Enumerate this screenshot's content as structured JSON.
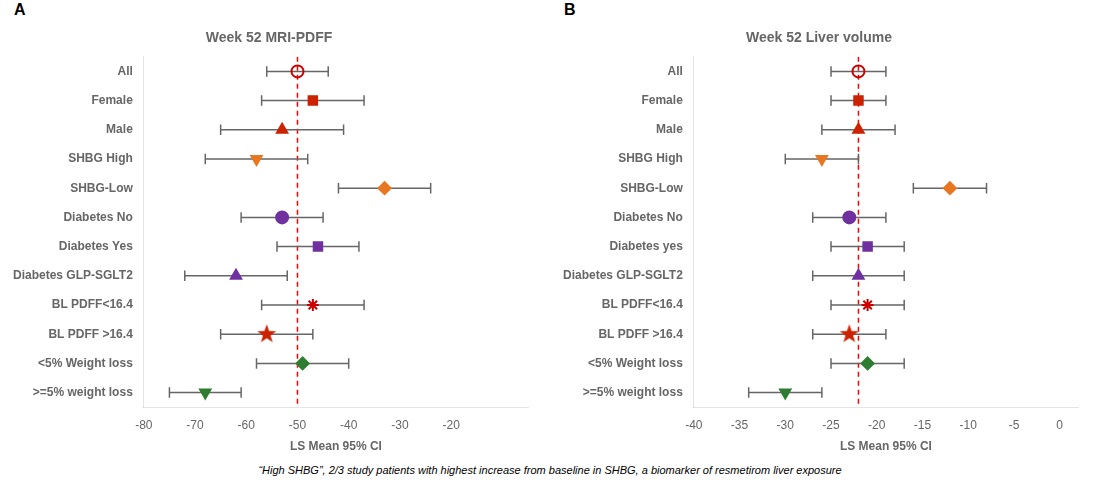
{
  "chart_data": [
    {
      "type": "forest",
      "title": "Week 52 MRI-PDFF",
      "label": "A",
      "xlabel": "LS Mean 95% CI",
      "categories": [
        "All",
        "Female",
        "Male",
        "SHBG High",
        "SHBG-Low",
        "Diabetes No",
        "Diabetes Yes",
        "Diabetes GLP-SGLT2",
        "BL PDFF<16.4",
        "BL PDFF >16.4",
        "<5% Weight loss",
        ">=5% weight loss"
      ],
      "values": [
        -50,
        -47,
        -53,
        -58,
        -33,
        -53,
        -46,
        -62,
        -47,
        -56,
        -49,
        -68
      ],
      "ci_low": [
        -56,
        -57,
        -65,
        -68,
        -42,
        -61,
        -54,
        -72,
        -57,
        -65,
        -58,
        -75
      ],
      "ci_high": [
        -44,
        -37,
        -41,
        -48,
        -24,
        -45,
        -38,
        -52,
        -37,
        -47,
        -40,
        -61
      ],
      "markers": [
        "circle-open",
        "square",
        "triangle",
        "triangle-down",
        "diamond",
        "circle",
        "square",
        "triangle",
        "asterisk",
        "star",
        "diamond",
        "triangle-down"
      ],
      "colors": [
        "#cc0000",
        "#cc2200",
        "#cc2200",
        "#e87722",
        "#e87722",
        "#7030a0",
        "#7030a0",
        "#7030a0",
        "#cc0000",
        "#cc2200",
        "#2e7d32",
        "#2e7d32"
      ],
      "xlim": [
        -80,
        -5
      ],
      "xticks": [
        -80,
        -70,
        -60,
        -50,
        -40,
        -30,
        -20
      ],
      "reference_line": {
        "value": -50,
        "color": "red",
        "line_style": "dashed"
      },
      "grid": false
    },
    {
      "type": "forest",
      "title": "Week 52 Liver volume",
      "label": "B",
      "xlabel": "LS Mean 95% CI",
      "categories": [
        "All",
        "Female",
        "Male",
        "SHBG High",
        "SHBG-Low",
        "Diabetes No",
        "Diabetes yes",
        "Diabetes GLP-SGLT2",
        "BL PDFF<16.4",
        "BL PDFF >16.4",
        "<5% Weight loss",
        ">=5% weight loss"
      ],
      "values": [
        -22,
        -22,
        -22,
        -26,
        -12,
        -23,
        -21,
        -22,
        -21,
        -23,
        -21,
        -30
      ],
      "ci_low": [
        -25,
        -25,
        -26,
        -30,
        -16,
        -27,
        -25,
        -27,
        -25,
        -27,
        -25,
        -34
      ],
      "ci_high": [
        -19,
        -19,
        -18,
        -22,
        -8,
        -19,
        -17,
        -17,
        -17,
        -19,
        -17,
        -26
      ],
      "markers": [
        "circle-open",
        "square",
        "triangle",
        "triangle-down",
        "diamond",
        "circle",
        "square",
        "triangle",
        "asterisk",
        "star",
        "diamond",
        "triangle-down"
      ],
      "colors": [
        "#cc0000",
        "#cc2200",
        "#cc2200",
        "#e87722",
        "#e87722",
        "#7030a0",
        "#7030a0",
        "#7030a0",
        "#cc0000",
        "#cc2200",
        "#2e7d32",
        "#2e7d32"
      ],
      "xlim": [
        -40,
        2
      ],
      "xticks": [
        -40,
        -35,
        -30,
        -25,
        -20,
        -15,
        -10,
        -5,
        0
      ],
      "reference_line": {
        "value": -22,
        "color": "red",
        "line_style": "dashed"
      },
      "grid": false
    }
  ],
  "footnote": "“High SHBG”, 2/3 study patients with highest increase from baseline in SHBG, a biomarker of resmetirom liver exposure"
}
